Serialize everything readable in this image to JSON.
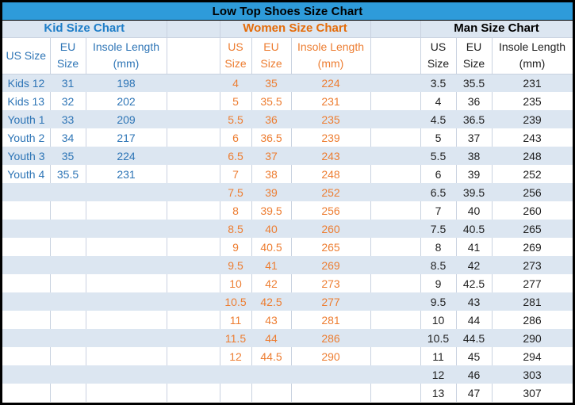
{
  "title": "Low Top Shoes Size Chart",
  "colors": {
    "title_bar_bg": "#2E9BDA",
    "stripe": "#DCE6F1",
    "grid_line": "#C9D2E0",
    "kid_accent": "#1F7EC8",
    "kid_text": "#2E75B6",
    "women_accent": "#E46C0A",
    "women_text": "#ED7D31",
    "man_accent": "#000000",
    "man_text": "#1F1F1F",
    "frame": "#000000"
  },
  "sections": [
    {
      "id": "kid",
      "label": "Kid Size Chart",
      "headers": [
        "US Size",
        "EU Size",
        "Insole Length (mm)"
      ],
      "rows": [
        [
          "Kids 12",
          "31",
          "198"
        ],
        [
          "Kids 13",
          "32",
          "202"
        ],
        [
          "Youth 1",
          "33",
          "209"
        ],
        [
          "Youth 2",
          "34",
          "217"
        ],
        [
          "Youth 3",
          "35",
          "224"
        ],
        [
          "Youth 4",
          "35.5",
          "231"
        ]
      ]
    },
    {
      "id": "women",
      "label": "Women Size Chart",
      "headers": [
        "US Size",
        "EU Size",
        "Insole Length (mm)"
      ],
      "rows": [
        [
          "4",
          "35",
          "224"
        ],
        [
          "5",
          "35.5",
          "231"
        ],
        [
          "5.5",
          "36",
          "235"
        ],
        [
          "6",
          "36.5",
          "239"
        ],
        [
          "6.5",
          "37",
          "243"
        ],
        [
          "7",
          "38",
          "248"
        ],
        [
          "7.5",
          "39",
          "252"
        ],
        [
          "8",
          "39.5",
          "256"
        ],
        [
          "8.5",
          "40",
          "260"
        ],
        [
          "9",
          "40.5",
          "265"
        ],
        [
          "9.5",
          "41",
          "269"
        ],
        [
          "10",
          "42",
          "273"
        ],
        [
          "10.5",
          "42.5",
          "277"
        ],
        [
          "11",
          "43",
          "281"
        ],
        [
          "11.5",
          "44",
          "286"
        ],
        [
          "12",
          "44.5",
          "290"
        ]
      ]
    },
    {
      "id": "man",
      "label": "Man Size Chart",
      "headers": [
        "US Size",
        "EU Size",
        "Insole Length (mm)"
      ],
      "rows": [
        [
          "3.5",
          "35.5",
          "231"
        ],
        [
          "4",
          "36",
          "235"
        ],
        [
          "4.5",
          "36.5",
          "239"
        ],
        [
          "5",
          "37",
          "243"
        ],
        [
          "5.5",
          "38",
          "248"
        ],
        [
          "6",
          "39",
          "252"
        ],
        [
          "6.5",
          "39.5",
          "256"
        ],
        [
          "7",
          "40",
          "260"
        ],
        [
          "7.5",
          "40.5",
          "265"
        ],
        [
          "8",
          "41",
          "269"
        ],
        [
          "8.5",
          "42",
          "273"
        ],
        [
          "9",
          "42.5",
          "277"
        ],
        [
          "9.5",
          "43",
          "281"
        ],
        [
          "10",
          "44",
          "286"
        ],
        [
          "10.5",
          "44.5",
          "290"
        ],
        [
          "11",
          "45",
          "294"
        ],
        [
          "12",
          "46",
          "303"
        ],
        [
          "13",
          "47",
          "307"
        ]
      ]
    }
  ]
}
